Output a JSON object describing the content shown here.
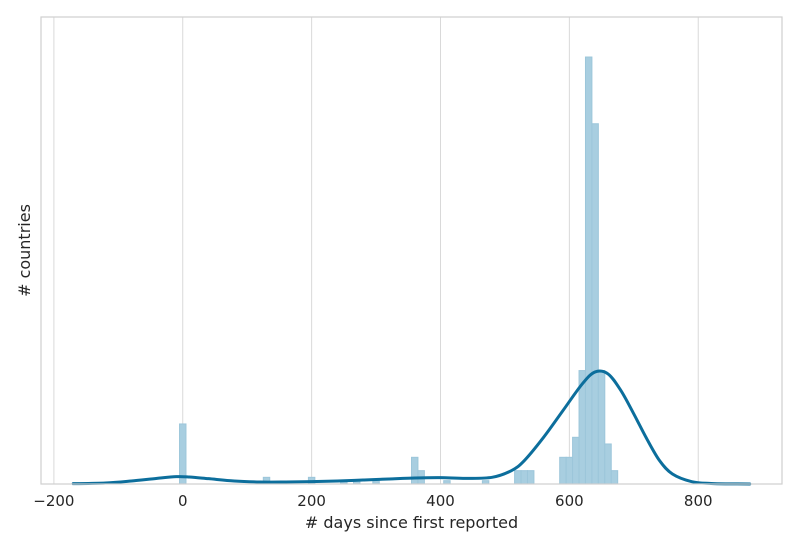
{
  "chart_data": {
    "type": "bar",
    "subtype": "histogram with KDE",
    "title": "",
    "xlabel": "# days since first reported",
    "ylabel": "# countries",
    "xlim": [
      -220,
      930
    ],
    "ylim": [
      0,
      70
    ],
    "grid": "vertical lines at major x ticks",
    "y_tick_labels_shown": false,
    "bin_width": 10,
    "xticks": [
      {
        "value": -200,
        "label": "−200"
      },
      {
        "value": 0,
        "label": "0"
      },
      {
        "value": 200,
        "label": "200"
      },
      {
        "value": 400,
        "label": "400"
      },
      {
        "value": 600,
        "label": "600"
      },
      {
        "value": 800,
        "label": "800"
      }
    ],
    "bins": [
      {
        "x": 0,
        "count": 9
      },
      {
        "x": 130,
        "count": 1
      },
      {
        "x": 200,
        "count": 1
      },
      {
        "x": 250,
        "count": 0.5
      },
      {
        "x": 270,
        "count": 0.5
      },
      {
        "x": 300,
        "count": 0.5
      },
      {
        "x": 360,
        "count": 4
      },
      {
        "x": 370,
        "count": 2
      },
      {
        "x": 410,
        "count": 0.5
      },
      {
        "x": 470,
        "count": 0.5
      },
      {
        "x": 520,
        "count": 2
      },
      {
        "x": 530,
        "count": 2
      },
      {
        "x": 540,
        "count": 2
      },
      {
        "x": 590,
        "count": 4
      },
      {
        "x": 600,
        "count": 4
      },
      {
        "x": 610,
        "count": 7
      },
      {
        "x": 620,
        "count": 17
      },
      {
        "x": 630,
        "count": 64
      },
      {
        "x": 640,
        "count": 54
      },
      {
        "x": 650,
        "count": 17
      },
      {
        "x": 660,
        "count": 6
      },
      {
        "x": 670,
        "count": 2
      }
    ],
    "kde_curve": {
      "x": [
        -170,
        -120,
        -80,
        -40,
        -10,
        10,
        40,
        80,
        120,
        160,
        200,
        240,
        280,
        320,
        360,
        400,
        440,
        480,
        510,
        530,
        560,
        590,
        620,
        640,
        660,
        680,
        700,
        720,
        740,
        760,
        790,
        820,
        850,
        880
      ],
      "y": [
        0.05,
        0.15,
        0.45,
        0.85,
        1.1,
        1.05,
        0.8,
        0.45,
        0.3,
        0.3,
        0.35,
        0.45,
        0.6,
        0.75,
        0.9,
        0.95,
        0.85,
        1.0,
        2.0,
        3.5,
        7.0,
        11.0,
        15.0,
        16.8,
        16.5,
        14.0,
        10.5,
        6.8,
        3.5,
        1.5,
        0.35,
        0.08,
        0.02,
        0.0
      ]
    },
    "colors": {
      "bar_fill": "#a8cee0",
      "bar_edge": "#9cc6da",
      "kde_line": "#0c6e9c",
      "grid": "#d9d9d9",
      "frame": "#cfcfcf",
      "text": "#262626"
    }
  }
}
